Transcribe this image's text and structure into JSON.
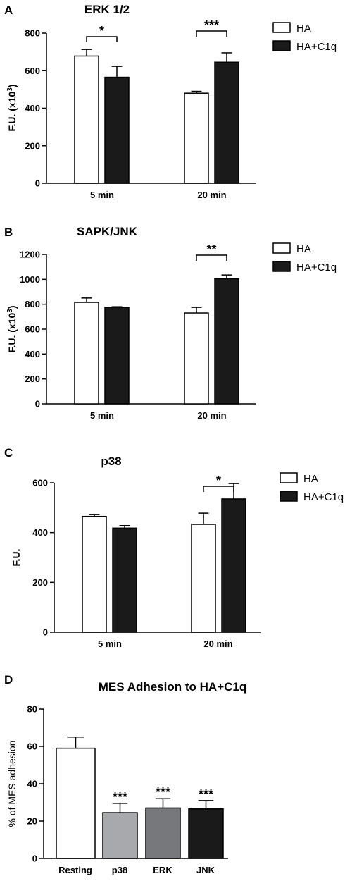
{
  "chart_data": [
    {
      "type": "bar",
      "panel": "A",
      "title": "ERK 1/2",
      "ylabel_main": "F.U. (x10",
      "ylabel_sup": "3",
      "ylabel_end": ")",
      "ylim": [
        0,
        800
      ],
      "yticks": [
        "0",
        "200",
        "400",
        "600",
        "800"
      ],
      "categories": [
        "5 min",
        "20 min"
      ],
      "series": [
        {
          "name": "HA",
          "values": [
            678,
            480
          ],
          "errors": [
            35,
            10
          ],
          "fill": "#ffffff"
        },
        {
          "name": "HA+C1q",
          "values": [
            565,
            645
          ],
          "errors": [
            58,
            50
          ],
          "fill": "#1a1a1a"
        }
      ],
      "significance": [
        "*",
        "***"
      ],
      "legend": "top-right"
    },
    {
      "type": "bar",
      "panel": "B",
      "title": "SAPK/JNK",
      "ylabel_main": "F.U. (x10",
      "ylabel_sup": "3",
      "ylabel_end": ")",
      "ylim": [
        0,
        1200
      ],
      "yticks": [
        "0",
        "200",
        "400",
        "600",
        "800",
        "1000",
        "1200"
      ],
      "categories": [
        "5 min",
        "20 min"
      ],
      "series": [
        {
          "name": "HA",
          "values": [
            815,
            730
          ],
          "errors": [
            35,
            45
          ],
          "fill": "#ffffff"
        },
        {
          "name": "HA+C1q",
          "values": [
            775,
            1005
          ],
          "errors": [
            5,
            30
          ],
          "fill": "#1a1a1a"
        }
      ],
      "significance": [
        "",
        "**"
      ],
      "legend": "top-right"
    },
    {
      "type": "bar",
      "panel": "C",
      "title": "p38",
      "ylabel_main": "F.U.",
      "ylabel_sup": "",
      "ylabel_end": "",
      "ylim": [
        0,
        600
      ],
      "yticks": [
        "0",
        "200",
        "400",
        "600"
      ],
      "categories": [
        "5 min",
        "20 min"
      ],
      "series": [
        {
          "name": "HA",
          "values": [
            465,
            433
          ],
          "errors": [
            8,
            45
          ],
          "fill": "#ffffff"
        },
        {
          "name": "HA+C1q",
          "values": [
            418,
            535
          ],
          "errors": [
            10,
            62
          ],
          "fill": "#1a1a1a"
        }
      ],
      "significance": [
        "",
        "*"
      ],
      "legend": "top-right"
    },
    {
      "type": "bar",
      "panel": "D",
      "title": "MES Adhesion to HA+C1q",
      "ylabel_main": "% of MES adhesion",
      "ylim": [
        0,
        80
      ],
      "yticks": [
        "0",
        "20",
        "40",
        "60",
        "80"
      ],
      "categories": [
        "Resting",
        "p38",
        "ERK",
        "JNK"
      ],
      "values": [
        59,
        24.5,
        27,
        26.5
      ],
      "errors": [
        6,
        5,
        5,
        4.5
      ],
      "fills": [
        "#ffffff",
        "#a7a9ac",
        "#77787b",
        "#1a1a1a"
      ],
      "significance": [
        "",
        "***",
        "***",
        "***"
      ]
    }
  ]
}
